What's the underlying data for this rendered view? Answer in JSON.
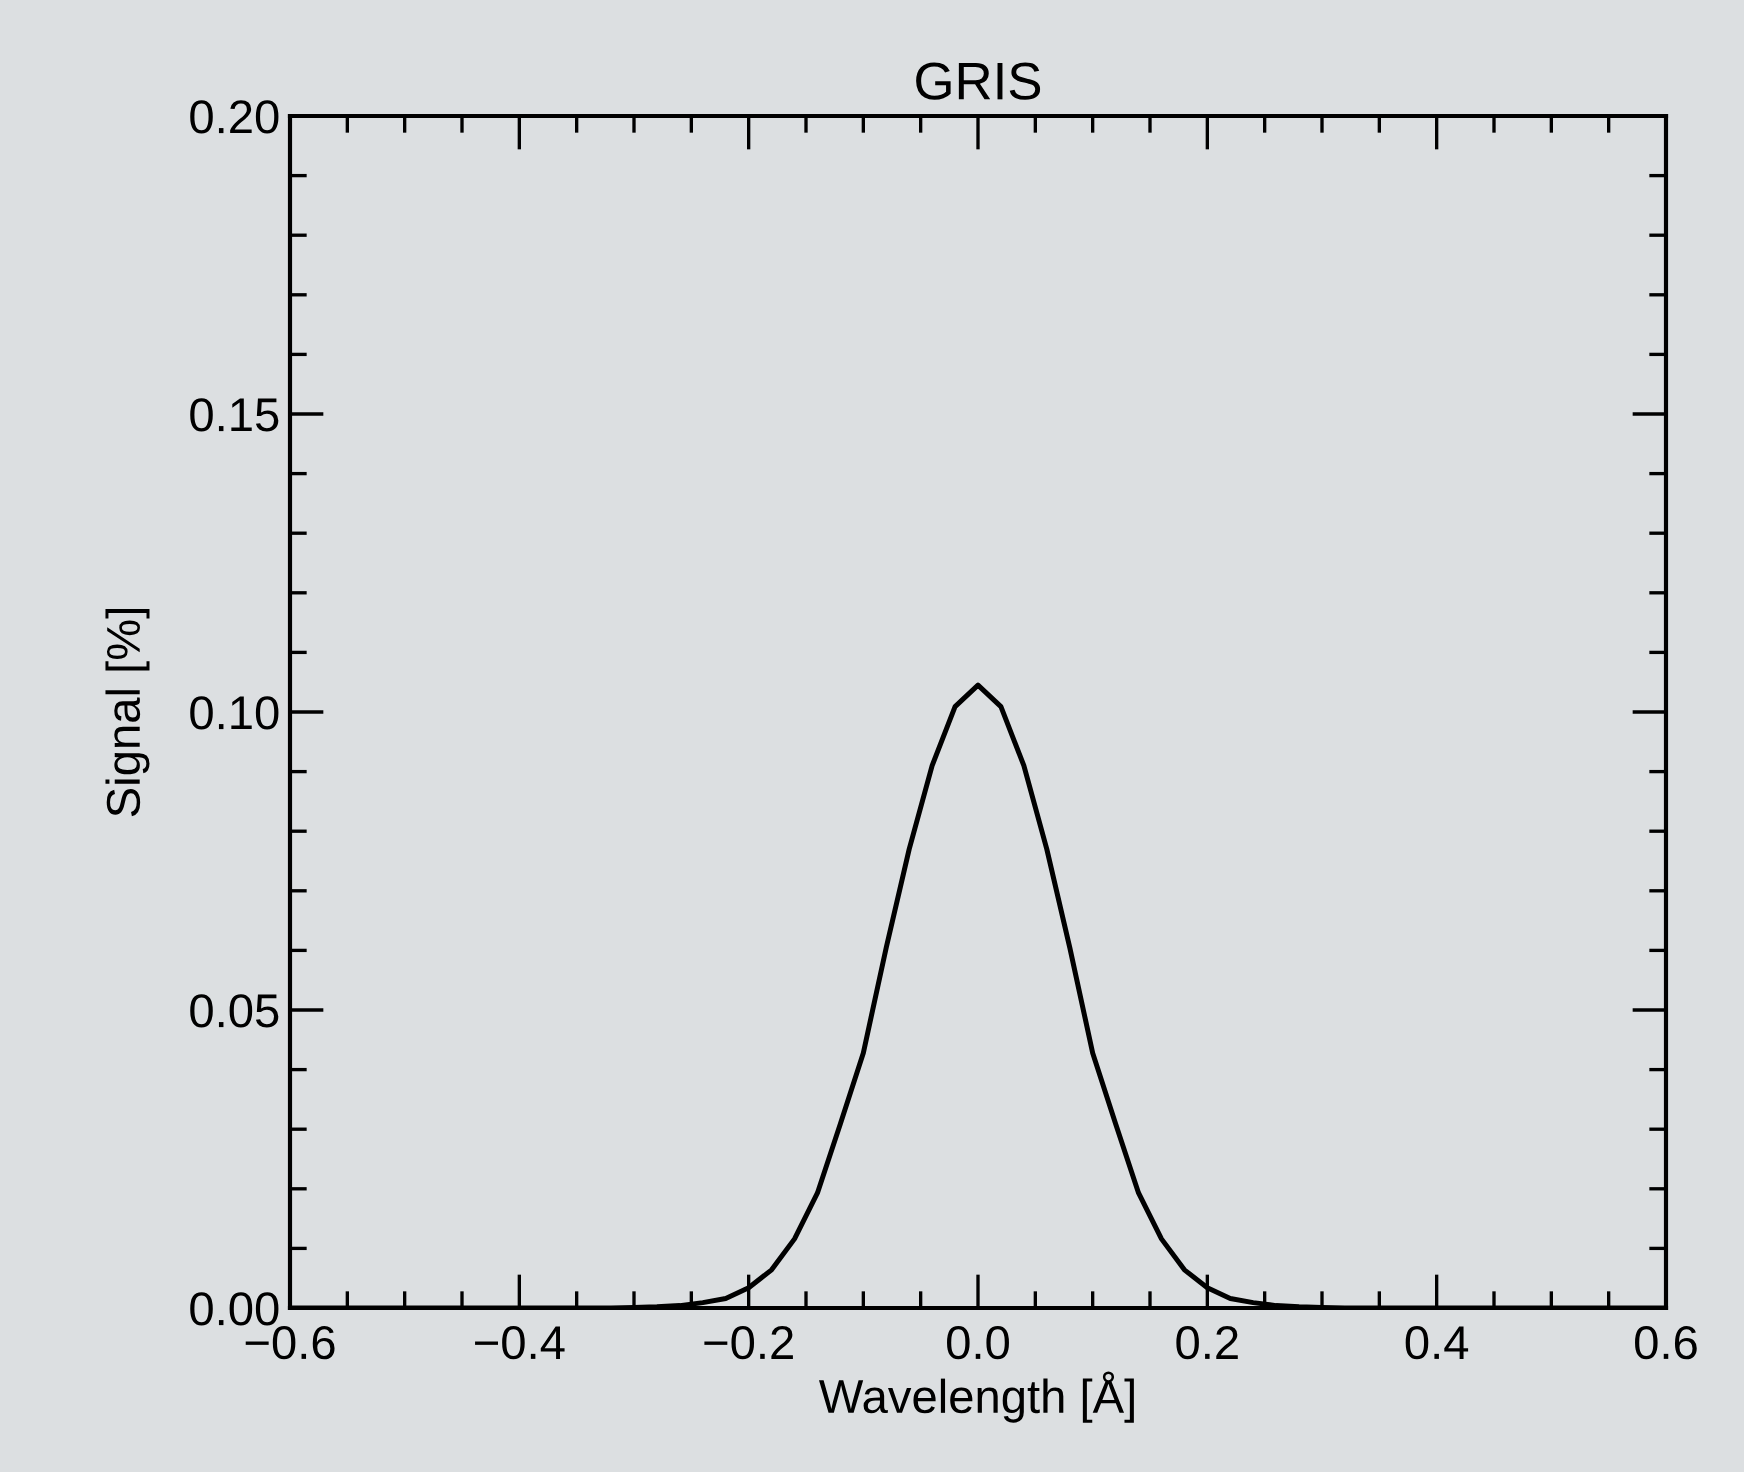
{
  "chart_data": {
    "type": "line",
    "title": "GRIS",
    "xlabel": "Wavelength [Å]",
    "ylabel": "Signal [%]",
    "x": [
      -0.6,
      -0.58,
      -0.56,
      -0.54,
      -0.52,
      -0.5,
      -0.48,
      -0.46,
      -0.44,
      -0.42,
      -0.4,
      -0.38,
      -0.36,
      -0.34,
      -0.32,
      -0.3,
      -0.28,
      -0.26,
      -0.24,
      -0.22,
      -0.2,
      -0.18,
      -0.16,
      -0.14,
      -0.12,
      -0.1,
      -0.08,
      -0.06,
      -0.04,
      -0.02,
      0,
      0.02,
      0.04,
      0.06,
      0.08,
      0.1,
      0.12,
      0.14,
      0.16,
      0.18,
      0.2,
      0.22,
      0.24,
      0.26,
      0.28,
      0.3,
      0.32,
      0.34,
      0.36,
      0.38,
      0.4,
      0.42,
      0.44,
      0.46,
      0.48,
      0.5,
      0.52,
      0.54,
      0.56,
      0.58,
      0.6
    ],
    "series": [
      {
        "color": "#000000",
        "values": [
          0,
          0,
          0,
          0,
          0,
          0,
          0,
          0,
          0,
          0,
          0,
          0,
          0,
          0,
          0,
          0.0001,
          0.0002,
          0.0004,
          0.0009,
          0.0016,
          0.0034,
          0.0064,
          0.0116,
          0.0193,
          0.0309,
          0.0428,
          0.0605,
          0.077,
          0.091,
          0.1009,
          0.1045,
          0.1009,
          0.091,
          0.077,
          0.0605,
          0.0428,
          0.0309,
          0.0193,
          0.0116,
          0.0064,
          0.0034,
          0.0016,
          0.0009,
          0.0004,
          0.0002,
          0.0001,
          0,
          0,
          0,
          0,
          0,
          0,
          0,
          0,
          0,
          0,
          0,
          0,
          0,
          0,
          0
        ]
      }
    ],
    "xlim": [
      -0.6,
      0.6
    ],
    "xticks": [
      {
        "value": -0.6,
        "label": "−0.6"
      },
      {
        "value": -0.4,
        "label": "−0.4"
      },
      {
        "value": -0.2,
        "label": "−0.2"
      },
      {
        "value": 0,
        "label": "0.0"
      },
      {
        "value": 0.2,
        "label": "0.2"
      },
      {
        "value": 0.4,
        "label": "0.4"
      },
      {
        "value": 0.6,
        "label": "0.6"
      }
    ],
    "ylim": [
      0,
      0.2
    ],
    "yticks": [
      {
        "value": 0,
        "label": "0.00"
      },
      {
        "value": 0.05,
        "label": "0.05"
      },
      {
        "value": 0.1,
        "label": "0.10"
      },
      {
        "value": 0.15,
        "label": "0.15"
      },
      {
        "value": 0.2,
        "label": "0.20"
      }
    ],
    "grid": false,
    "marker": "none",
    "line_style": "solid"
  }
}
